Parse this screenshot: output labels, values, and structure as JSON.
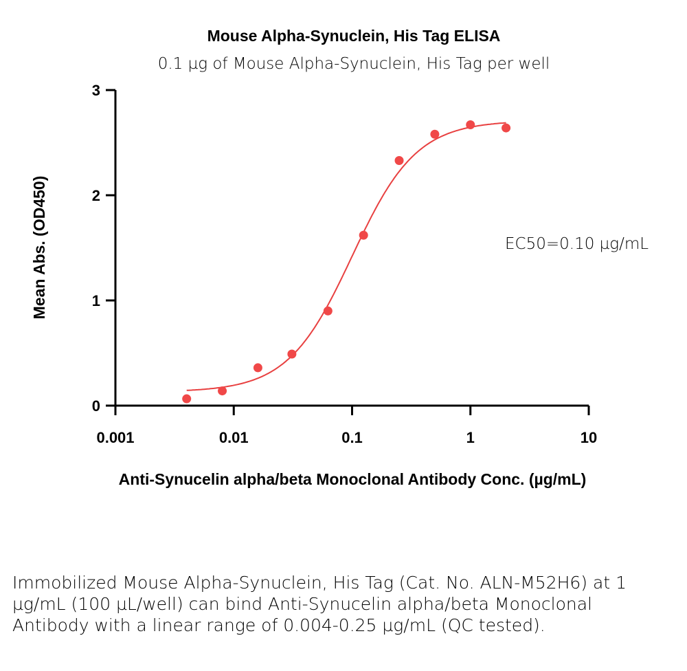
{
  "chart_data": {
    "type": "scatter",
    "title": "Mouse Alpha-Synuclein, His Tag ELISA",
    "subtitle": "0.1 µg of Mouse Alpha-Synuclein, His Tag per well",
    "xlabel": "Anti-Synucelin alpha/beta Monoclonal Antibody Conc. (µg/mL)",
    "ylabel": "Mean Abs. (OD450)",
    "xscale": "log",
    "xlim": [
      0.001,
      10
    ],
    "ylim": [
      0,
      3
    ],
    "xticks": [
      "0.001",
      "0.01",
      "0.1",
      "1",
      "10"
    ],
    "yticks": [
      "0",
      "1",
      "2",
      "3"
    ],
    "grid": false,
    "annotation": "EC50=0.10 µg/mL",
    "point_color": "#f04848",
    "curve_color": "#e84040",
    "series": [
      {
        "x": [
          0.004,
          0.008,
          0.016,
          0.031,
          0.0625,
          0.125,
          0.25,
          0.5,
          1,
          2
        ],
        "y": [
          0.065,
          0.14,
          0.36,
          0.49,
          0.9,
          1.62,
          2.33,
          2.58,
          2.67,
          2.64
        ]
      }
    ],
    "fit": {
      "model": "4PL",
      "bottom": 0.13,
      "top": 2.71,
      "ec50": 0.1,
      "hill": 1.6
    }
  },
  "caption": "Immobilized Mouse Alpha-Synuclein, His Tag (Cat. No. ALN-M52H6) at 1 µg/mL (100 µL/well) can bind Anti-Synucelin alpha/beta Monoclonal Antibody with a linear range of 0.004-0.25 µg/mL (QC tested)."
}
